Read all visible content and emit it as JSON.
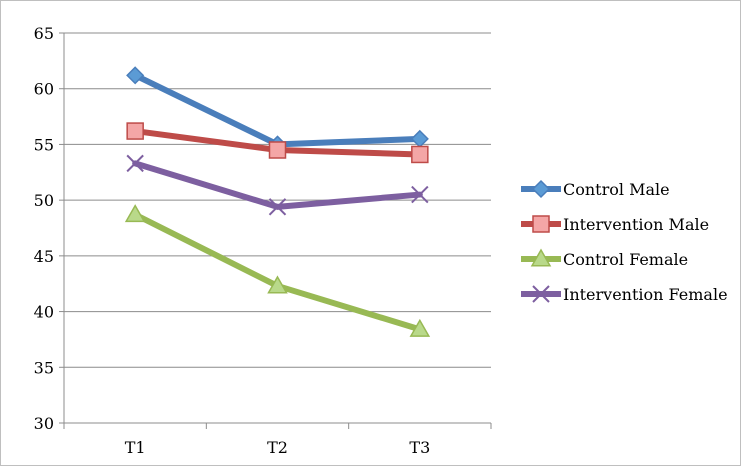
{
  "chart_data": {
    "type": "line",
    "categories": [
      "T1",
      "T2",
      "T3"
    ],
    "ylim": [
      30,
      65
    ],
    "yticks": [
      30,
      35,
      40,
      45,
      50,
      55,
      60,
      65
    ],
    "grid": true,
    "legend_position": "right",
    "series": [
      {
        "name": "Control Male",
        "values": [
          61.2,
          55.0,
          55.5
        ],
        "color": "#4a7ebb",
        "marker": "diamond",
        "marker_fill": "#5b9bd5"
      },
      {
        "name": "Intervention Male",
        "values": [
          56.2,
          54.5,
          54.1
        ],
        "color": "#be4b48",
        "marker": "square",
        "marker_fill": "#f4a6a6"
      },
      {
        "name": "Control Female",
        "values": [
          48.7,
          42.3,
          38.4
        ],
        "color": "#98b954",
        "marker": "triangle",
        "marker_fill": "#b9d98a"
      },
      {
        "name": "Intervention Female",
        "values": [
          53.3,
          49.4,
          50.5
        ],
        "color": "#7d5fa0",
        "marker": "x",
        "marker_fill": "#7d5fa0"
      }
    ]
  }
}
